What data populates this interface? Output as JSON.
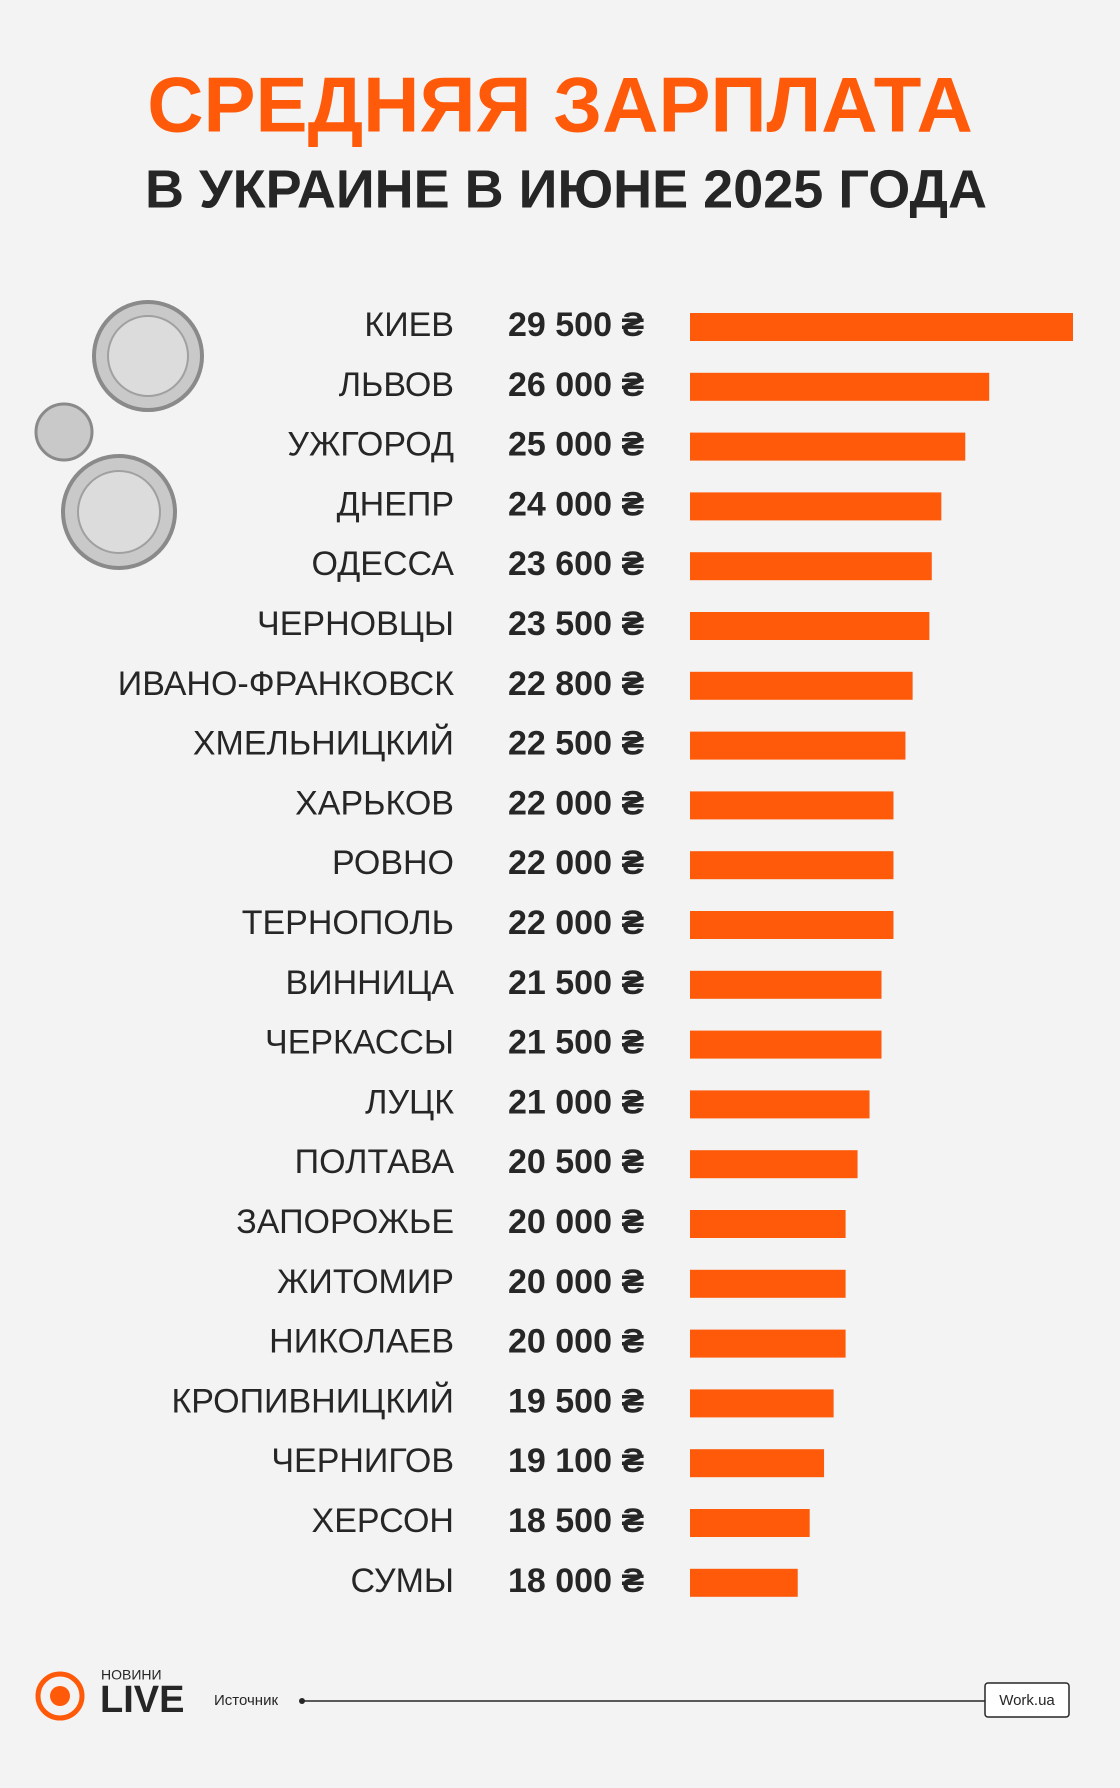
{
  "chart_data": {
    "type": "bar",
    "orientation": "horizontal",
    "title": "СРЕДНЯЯ ЗАРПЛАТА",
    "subtitle": "В УКРАИНЕ В ИЮНЕ 2025 ГОДА",
    "categories": [
      "КИЕВ",
      "ЛЬВОВ",
      "УЖГОРОД",
      "ДНЕПР",
      "ОДЕССА",
      "ЧЕРНОВЦЫ",
      "ИВАНО-ФРАНКОВСК",
      "ХМЕЛЬНИЦКИЙ",
      "ХАРЬКОВ",
      "РОВНО",
      "ТЕРНОПОЛЬ",
      "ВИННИЦА",
      "ЧЕРКАССЫ",
      "ЛУЦК",
      "ПОЛТАВА",
      "ЗАПОРОЖЬЕ",
      "ЖИТОМИР",
      "НИКОЛАЕВ",
      "КРОПИВНИЦКИЙ",
      "ЧЕРНИГОВ",
      "ХЕРСОН",
      "СУМЫ"
    ],
    "values": [
      29500,
      26000,
      25000,
      24000,
      23600,
      23500,
      22800,
      22500,
      22000,
      22000,
      22000,
      21500,
      21500,
      21000,
      20500,
      20000,
      20000,
      20000,
      19500,
      19100,
      18500,
      18000
    ],
    "value_labels": [
      "29 500 ₴",
      "26 000 ₴",
      "25 000 ₴",
      "24 000 ₴",
      "23 600 ₴",
      "23 500 ₴",
      "22 800 ₴",
      "22 500 ₴",
      "22 000 ₴",
      "22 000 ₴",
      "22 000 ₴",
      "21 500 ₴",
      "21 500 ₴",
      "21 000 ₴",
      "20 500 ₴",
      "20 000 ₴",
      "20 000 ₴",
      "20 000 ₴",
      "19 500 ₴",
      "19 100 ₴",
      "18 500 ₴",
      "18 000 ₴"
    ],
    "color": "#ff5a0a",
    "xlim": [
      13500,
      29500
    ]
  },
  "footer": {
    "brand_top": "НОВИНИ",
    "brand": "LIVE",
    "source_label": "Источник",
    "source": "Work.ua"
  }
}
